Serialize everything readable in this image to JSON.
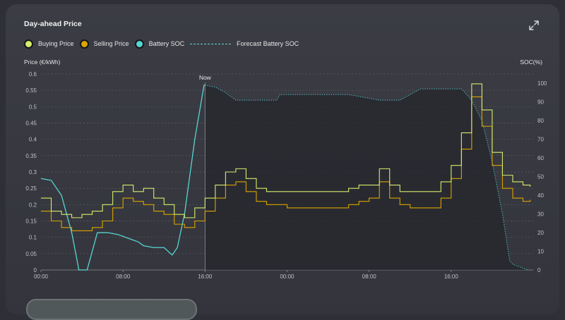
{
  "card": {
    "title": "Day-ahead Price",
    "expand_icon": "expand-arrows-icon",
    "legend": [
      {
        "name": "Buying Price",
        "color": "#d6ec6b",
        "style": "dot"
      },
      {
        "name": "Selling Price",
        "color": "#d9a400",
        "style": "dot"
      },
      {
        "name": "Battery SOC",
        "color": "#56d6d2",
        "style": "dot"
      },
      {
        "name": "Forecast Battery SOC",
        "color": "#56d6d2",
        "style": "dash"
      }
    ]
  },
  "chart_data": {
    "type": "line",
    "x_ticks": [
      "00:00",
      "08:00",
      "16:00",
      "00:00",
      "08:00",
      "16:00"
    ],
    "ylabel": "Price (€/kWh)",
    "y2label": "SOC(%)",
    "ylim": [
      0,
      0.6
    ],
    "y_ticks": [
      "0",
      "0.05",
      "0.1",
      "0.15",
      "0.2",
      "0.25",
      "0.3",
      "0.35",
      "0.4",
      "0.45",
      "0.5",
      "0.55",
      "0.6"
    ],
    "y2lim": [
      0,
      105
    ],
    "y2_ticks": [
      "0",
      "10",
      "20",
      "30",
      "40",
      "50",
      "60",
      "70",
      "80",
      "90",
      "100"
    ],
    "now_label": "Now",
    "now_hour": 16,
    "x_range_hours": [
      0,
      48
    ],
    "series": [
      {
        "name": "Buying Price",
        "color": "#d6ec6b",
        "step": true,
        "points": [
          [
            0,
            0.22
          ],
          [
            1,
            0.18
          ],
          [
            2,
            0.17
          ],
          [
            3,
            0.16
          ],
          [
            4,
            0.17
          ],
          [
            5,
            0.18
          ],
          [
            6,
            0.2
          ],
          [
            7,
            0.24
          ],
          [
            8,
            0.26
          ],
          [
            9,
            0.24
          ],
          [
            10,
            0.25
          ],
          [
            11,
            0.22
          ],
          [
            12,
            0.2
          ],
          [
            13,
            0.17
          ],
          [
            14,
            0.16
          ],
          [
            15,
            0.19
          ],
          [
            16,
            0.22
          ],
          [
            17,
            0.26
          ],
          [
            18,
            0.3
          ],
          [
            19,
            0.31
          ],
          [
            20,
            0.28
          ],
          [
            21,
            0.25
          ],
          [
            22,
            0.24
          ],
          [
            23,
            0.24
          ],
          [
            24,
            0.24
          ],
          [
            25,
            0.24
          ],
          [
            26,
            0.24
          ],
          [
            27,
            0.24
          ],
          [
            28,
            0.24
          ],
          [
            29,
            0.24
          ],
          [
            30,
            0.25
          ],
          [
            31,
            0.26
          ],
          [
            32,
            0.26
          ],
          [
            33,
            0.31
          ],
          [
            34,
            0.26
          ],
          [
            35,
            0.24
          ],
          [
            36,
            0.24
          ],
          [
            37,
            0.24
          ],
          [
            38,
            0.24
          ],
          [
            39,
            0.27
          ],
          [
            40,
            0.32
          ],
          [
            41,
            0.42
          ],
          [
            42,
            0.57
          ],
          [
            43,
            0.49
          ],
          [
            44,
            0.36
          ],
          [
            45,
            0.29
          ],
          [
            46,
            0.27
          ],
          [
            47,
            0.26
          ],
          [
            47.7,
            0.255
          ]
        ]
      },
      {
        "name": "Selling Price",
        "color": "#d9a400",
        "step": true,
        "points": [
          [
            0,
            0.18
          ],
          [
            1,
            0.15
          ],
          [
            2,
            0.13
          ],
          [
            3,
            0.12
          ],
          [
            4,
            0.12
          ],
          [
            5,
            0.13
          ],
          [
            6,
            0.15
          ],
          [
            7,
            0.19
          ],
          [
            8,
            0.22
          ],
          [
            9,
            0.21
          ],
          [
            10,
            0.2
          ],
          [
            11,
            0.18
          ],
          [
            12,
            0.17
          ],
          [
            13,
            0.14
          ],
          [
            14,
            0.13
          ],
          [
            15,
            0.15
          ],
          [
            16,
            0.18
          ],
          [
            17,
            0.22
          ],
          [
            18,
            0.26
          ],
          [
            19,
            0.27
          ],
          [
            20,
            0.24
          ],
          [
            21,
            0.21
          ],
          [
            22,
            0.2
          ],
          [
            23,
            0.2
          ],
          [
            24,
            0.19
          ],
          [
            25,
            0.19
          ],
          [
            26,
            0.19
          ],
          [
            27,
            0.19
          ],
          [
            28,
            0.19
          ],
          [
            29,
            0.19
          ],
          [
            30,
            0.2
          ],
          [
            31,
            0.21
          ],
          [
            32,
            0.22
          ],
          [
            33,
            0.27
          ],
          [
            34,
            0.22
          ],
          [
            35,
            0.2
          ],
          [
            36,
            0.19
          ],
          [
            37,
            0.19
          ],
          [
            38,
            0.19
          ],
          [
            39,
            0.22
          ],
          [
            40,
            0.28
          ],
          [
            41,
            0.37
          ],
          [
            42,
            0.53
          ],
          [
            43,
            0.44
          ],
          [
            44,
            0.32
          ],
          [
            45,
            0.25
          ],
          [
            46,
            0.22
          ],
          [
            47,
            0.21
          ],
          [
            47.7,
            0.215
          ]
        ]
      },
      {
        "name": "Battery SOC",
        "color": "#56d6d2",
        "axis": "y2",
        "points": [
          [
            0,
            49
          ],
          [
            1,
            48
          ],
          [
            2,
            40
          ],
          [
            3,
            20
          ],
          [
            3.7,
            0
          ],
          [
            4.5,
            0
          ],
          [
            5.5,
            20
          ],
          [
            6.5,
            20
          ],
          [
            7.5,
            19
          ],
          [
            8.5,
            17
          ],
          [
            9.5,
            15
          ],
          [
            10,
            13
          ],
          [
            11,
            12
          ],
          [
            12,
            12
          ],
          [
            12.8,
            8
          ],
          [
            13.3,
            12
          ],
          [
            14,
            30
          ],
          [
            15,
            70
          ],
          [
            15.9,
            99
          ],
          [
            16,
            99
          ]
        ]
      },
      {
        "name": "Forecast Battery SOC",
        "color": "#56d6d2",
        "axis": "y2",
        "dashed": true,
        "points": [
          [
            16,
            99
          ],
          [
            17,
            98
          ],
          [
            18,
            95
          ],
          [
            19,
            91
          ],
          [
            20,
            91
          ],
          [
            21,
            91
          ],
          [
            22,
            91
          ],
          [
            23,
            91
          ],
          [
            23.3,
            94
          ],
          [
            24,
            94
          ],
          [
            25,
            94
          ],
          [
            26,
            94
          ],
          [
            27,
            94
          ],
          [
            28,
            94
          ],
          [
            29,
            94
          ],
          [
            30,
            94
          ],
          [
            31,
            93
          ],
          [
            32,
            92
          ],
          [
            33,
            91
          ],
          [
            34,
            91
          ],
          [
            35,
            91
          ],
          [
            36,
            94
          ],
          [
            37,
            97
          ],
          [
            38,
            97
          ],
          [
            39,
            97
          ],
          [
            40,
            97
          ],
          [
            41,
            97
          ],
          [
            42,
            91
          ],
          [
            43,
            80
          ],
          [
            44,
            58
          ],
          [
            45,
            30
          ],
          [
            45.7,
            5
          ],
          [
            46,
            3
          ],
          [
            47,
            1
          ],
          [
            47.5,
            0
          ]
        ]
      }
    ]
  }
}
